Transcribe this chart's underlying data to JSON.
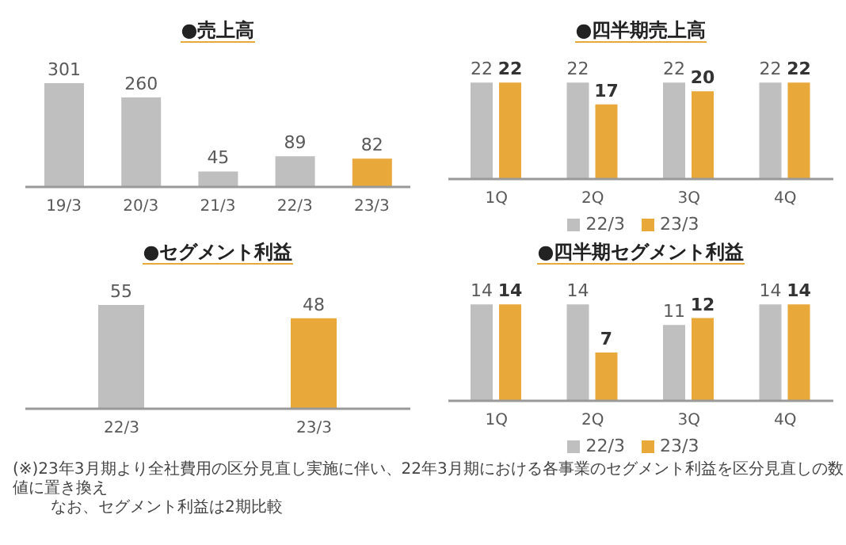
{
  "chart_data": [
    {
      "type": "bar",
      "title": "●売上高",
      "categories": [
        "19/3",
        "20/3",
        "21/3",
        "22/3",
        "23/3"
      ],
      "values": [
        301,
        260,
        45,
        89,
        82
      ],
      "colors": [
        "#bfbfbf",
        "#bfbfbf",
        "#bfbfbf",
        "#bfbfbf",
        "#e8a83a"
      ],
      "data_labels": true
    },
    {
      "type": "bar",
      "title": "●四半期売上高",
      "categories": [
        "1Q",
        "2Q",
        "3Q",
        "4Q"
      ],
      "series": [
        {
          "name": "22/3",
          "color": "#bfbfbf",
          "values": [
            22,
            22,
            22,
            22
          ]
        },
        {
          "name": "23/3",
          "color": "#e8a83a",
          "values": [
            22,
            17,
            20,
            22
          ]
        }
      ],
      "data_labels": true,
      "legend": "bottom"
    },
    {
      "type": "bar",
      "title": "●セグメント利益",
      "categories": [
        "22/3",
        "23/3"
      ],
      "values": [
        55,
        48
      ],
      "colors": [
        "#bfbfbf",
        "#e8a83a"
      ],
      "data_labels": true
    },
    {
      "type": "bar",
      "title": "●四半期セグメント利益",
      "categories": [
        "1Q",
        "2Q",
        "3Q",
        "4Q"
      ],
      "series": [
        {
          "name": "22/3",
          "color": "#bfbfbf",
          "values": [
            14,
            14,
            11,
            14
          ]
        },
        {
          "name": "23/3",
          "color": "#e8a83a",
          "values": [
            14,
            7,
            12,
            14
          ]
        }
      ],
      "data_labels": true,
      "legend": "bottom",
      "annotations": [
        "(※)23年3月期より全社費用の区分見直し実施に伴い、22年3月期における各事業のセグメント利益を区分見直しの数値に置き換え",
        "なお、セグメント利益は2期比較"
      ]
    }
  ]
}
